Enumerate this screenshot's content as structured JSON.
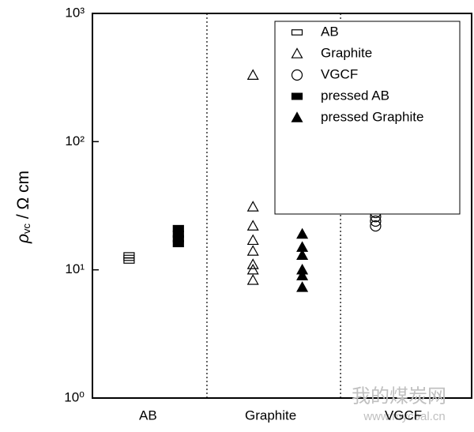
{
  "chart_data": {
    "type": "scatter",
    "ylabel": "ρ",
    "ylabel_subscript": "vc",
    "ylabel_unit": " / Ω cm",
    "log_y": true,
    "xlim": [
      0,
      3
    ],
    "xticks": [
      {
        "value": 0.44,
        "label": "AB"
      },
      {
        "value": 1.41,
        "label": "Graphite"
      },
      {
        "value": 2.46,
        "label": "VGCF"
      }
    ],
    "dividers": [
      0.906,
      1.963
    ],
    "ylim": [
      1,
      1000
    ],
    "yticks": [
      {
        "value": 1,
        "label": "10⁰"
      },
      {
        "value": 10,
        "label": "10¹"
      },
      {
        "value": 100,
        "label": "10²"
      },
      {
        "value": 1000,
        "label": "10³"
      }
    ],
    "legend": "upper right",
    "series": [
      {
        "name": "AB",
        "marker": "square",
        "filled": false,
        "color": "#000000",
        "x": [
          0.29,
          0.29,
          0.29
        ],
        "values": [
          13,
          12.4,
          11.8
        ]
      },
      {
        "name": "Graphite",
        "marker": "triangle",
        "filled": false,
        "color": "#000000",
        "x": [
          1.27,
          1.27,
          1.27,
          1.27,
          1.27,
          1.27,
          1.27,
          1.27
        ],
        "values": [
          330,
          31,
          22,
          17,
          14,
          11,
          10,
          8.3
        ]
      },
      {
        "name": "VGCF",
        "marker": "circle",
        "filled": false,
        "color": "#000000",
        "x": [
          2.24,
          2.24,
          2.24,
          2.24
        ],
        "values": [
          28,
          26,
          24,
          22
        ]
      },
      {
        "name": "pressed AB",
        "marker": "square",
        "filled": true,
        "color": "#000000",
        "x": [
          0.68,
          0.68,
          0.68,
          0.68
        ],
        "values": [
          21,
          19,
          17.5,
          16
        ]
      },
      {
        "name": "pressed Graphite",
        "marker": "triangle",
        "filled": true,
        "color": "#000000",
        "x": [
          1.66,
          1.66,
          1.66,
          1.66,
          1.66,
          1.66
        ],
        "values": [
          19,
          15,
          13,
          10,
          9,
          7.3
        ]
      }
    ],
    "watermark": [
      "我的煤炭网",
      "www.mycoal.cn"
    ]
  }
}
